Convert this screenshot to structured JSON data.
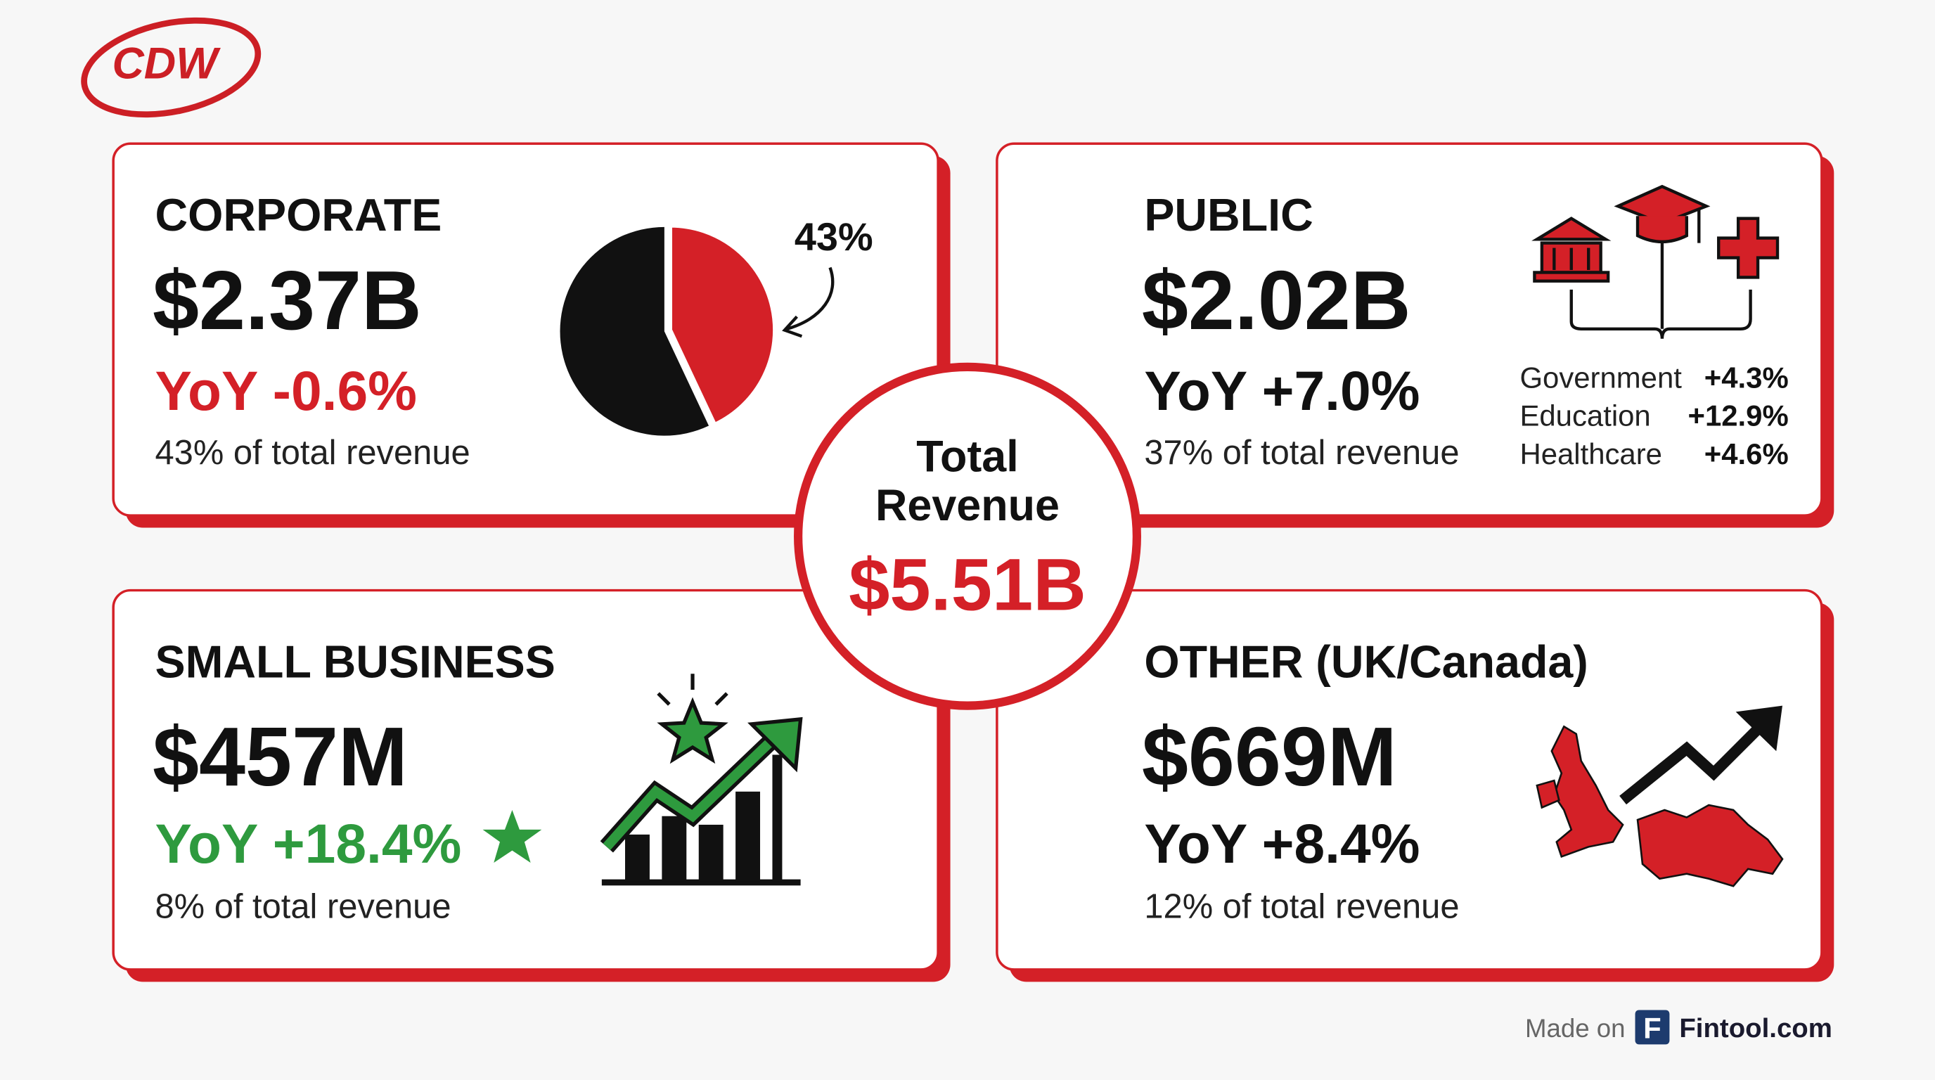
{
  "logo": "CDW",
  "cards": [
    {
      "segment": "CORPORATE",
      "revenue": "$2.37B",
      "yoy": "YoY -0.6%",
      "share": "43% of total revenue",
      "pie": {
        "value": 43,
        "label": "43%"
      }
    },
    {
      "segment": "PUBLIC",
      "revenue": "$2.02B",
      "yoy": "YoY +7.0%",
      "share": "37% of total revenue",
      "breakdown": [
        [
          "Government",
          "+4.3%"
        ],
        [
          "Education",
          "+12.9%"
        ],
        [
          "Healthcare",
          "+4.6%"
        ]
      ]
    },
    {
      "segment": "SMALL BUSINESS",
      "revenue": "$457M",
      "yoy": "YoY +18.4%",
      "share": "8% of total revenue"
    },
    {
      "segment": "OTHER (UK/Canada)",
      "revenue": "$669M",
      "yoy": "YoY +8.4%",
      "share": "12% of total revenue"
    }
  ],
  "total": {
    "title": "Total Revenue",
    "value": "$5.51B"
  },
  "footer": {
    "prefix": "Made on",
    "icon": "F",
    "brand": "Fintool.com"
  }
}
